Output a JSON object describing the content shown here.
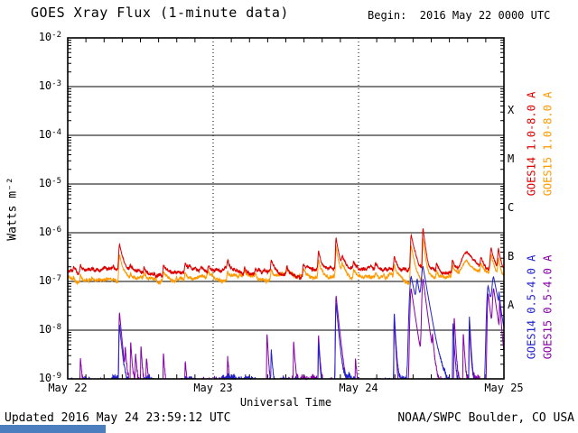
{
  "footer": {
    "updated": "Updated 2016 May 24 23:59:12 UTC",
    "source": "NOAA/SWPC Boulder, CO USA"
  },
  "status_fragment": {
    "color": "#4a7ebf"
  },
  "chart_data": {
    "type": "line",
    "title": "GOES Xray Flux (1-minute data)",
    "begin": "Begin:  2016 May 22 0000 UTC",
    "xlabel": "Universal Time",
    "ylabel": "Watts m⁻²",
    "x_range_hours": [
      0,
      72
    ],
    "x_minor_tick_hours": 3,
    "x_day_ticks": [
      {
        "t": 0,
        "label": "May 22"
      },
      {
        "t": 24,
        "label": "May 23"
      },
      {
        "t": 48,
        "label": "May 24"
      },
      {
        "t": 72,
        "label": "May 25"
      }
    ],
    "y_exponents": [
      -2,
      -3,
      -4,
      -5,
      -6,
      -7,
      -8,
      -9
    ],
    "clip_min": 1e-09,
    "clip_max": 0.01,
    "grid": {
      "horizontal": "solid",
      "vertical": "dotted"
    },
    "flare_classes": [
      {
        "letter": "X",
        "center_exponent": -3.5
      },
      {
        "letter": "M",
        "center_exponent": -4.5
      },
      {
        "letter": "C",
        "center_exponent": -5.5
      },
      {
        "letter": "B",
        "center_exponent": -6.5
      },
      {
        "letter": "A",
        "center_exponent": -7.5
      }
    ],
    "legend": [
      {
        "label": "GOES14 1.0-8.0 A",
        "color": "#dd0000"
      },
      {
        "label": "GOES15 1.0-8.0 A",
        "color": "#ff9900"
      },
      {
        "label": "GOES14 0.5-4.0 A",
        "color": "#2222cc"
      },
      {
        "label": "GOES15 0.5-4.0 A",
        "color": "#8800aa"
      }
    ],
    "series": [
      {
        "name": "GOES15 1.0-8.0 A",
        "color": "#ff9900",
        "baseline": 1.15e-07,
        "noise": 0.06,
        "wander": 0.03,
        "rise": 0.12,
        "decay": 0.45,
        "flares": [
          {
            "t": 1.0,
            "peak": 3e-08
          },
          {
            "t": 2.1,
            "peak": 4.5e-08
          },
          {
            "t": 4.0,
            "peak": 2e-08
          },
          {
            "t": 8.55,
            "peak": 2.6e-07,
            "rise": 0.15,
            "decay": 0.5
          },
          {
            "t": 10.4,
            "peak": 3e-08
          },
          {
            "t": 12.6,
            "peak": 4e-08
          },
          {
            "t": 15.8,
            "peak": 5.5e-08
          },
          {
            "t": 19.4,
            "peak": 4e-08
          },
          {
            "t": 23.2,
            "peak": 3e-08
          },
          {
            "t": 26.4,
            "peak": 5e-08
          },
          {
            "t": 29.2,
            "peak": 3e-08
          },
          {
            "t": 31.0,
            "peak": 2.5e-08
          },
          {
            "t": 33.6,
            "peak": 7e-08
          },
          {
            "t": 36.2,
            "peak": 4e-08
          },
          {
            "t": 38.9,
            "peak": 5.5e-08
          },
          {
            "t": 41.4,
            "peak": 1.5e-07
          },
          {
            "t": 44.3,
            "peak": 3.9e-07,
            "rise": 0.12,
            "decay": 0.4
          },
          {
            "t": 45.3,
            "peak": 7e-08
          },
          {
            "t": 47.2,
            "peak": 4.5e-08
          },
          {
            "t": 50.8,
            "peak": 4e-08
          },
          {
            "t": 53.9,
            "peak": 9.5e-08
          },
          {
            "t": 56.7,
            "peak": 4.5e-07,
            "rise": 0.15,
            "decay": 0.5
          },
          {
            "t": 58.65,
            "peak": 6.6e-07,
            "rise": 0.12,
            "decay": 0.35
          },
          {
            "t": 60.9,
            "peak": 5e-08
          },
          {
            "t": 63.5,
            "peak": 9e-08
          },
          {
            "t": 65.9,
            "peak": 1.6e-07,
            "rise": 1.0,
            "decay": 1.6
          },
          {
            "t": 68.2,
            "peak": 7.5e-08
          },
          {
            "t": 69.9,
            "peak": 2.1e-07,
            "rise": 0.2,
            "decay": 0.5
          },
          {
            "t": 71.1,
            "peak": 1.7e-07,
            "rise": 0.15,
            "decay": 0.4
          }
        ]
      },
      {
        "name": "GOES14 1.0-8.0 A",
        "color": "#dd0000",
        "baseline": 1.6e-07,
        "noise": 0.06,
        "wander": 0.03,
        "rise": 0.12,
        "decay": 0.45,
        "flares": [
          {
            "t": 1.0,
            "peak": 5e-08
          },
          {
            "t": 2.1,
            "peak": 7e-08
          },
          {
            "t": 4.0,
            "peak": 3e-08
          },
          {
            "t": 8.55,
            "peak": 4.2e-07,
            "rise": 0.15,
            "decay": 0.5
          },
          {
            "t": 10.4,
            "peak": 5e-08
          },
          {
            "t": 12.6,
            "peak": 6e-08
          },
          {
            "t": 15.8,
            "peak": 9e-08
          },
          {
            "t": 19.4,
            "peak": 6e-08
          },
          {
            "t": 23.2,
            "peak": 5e-08
          },
          {
            "t": 26.4,
            "peak": 8e-08
          },
          {
            "t": 29.2,
            "peak": 5e-08
          },
          {
            "t": 31.0,
            "peak": 4e-08
          },
          {
            "t": 33.6,
            "peak": 1.1e-07
          },
          {
            "t": 36.2,
            "peak": 6e-08
          },
          {
            "t": 38.9,
            "peak": 9e-08
          },
          {
            "t": 41.4,
            "peak": 2.4e-07
          },
          {
            "t": 44.3,
            "peak": 6.2e-07,
            "rise": 0.12,
            "decay": 0.4
          },
          {
            "t": 45.3,
            "peak": 1.1e-07
          },
          {
            "t": 47.2,
            "peak": 7e-08
          },
          {
            "t": 50.8,
            "peak": 6e-08
          },
          {
            "t": 53.9,
            "peak": 1.5e-07
          },
          {
            "t": 56.7,
            "peak": 7.2e-07,
            "rise": 0.15,
            "decay": 0.5
          },
          {
            "t": 58.65,
            "peak": 1.05e-06,
            "rise": 0.12,
            "decay": 0.35
          },
          {
            "t": 60.9,
            "peak": 8e-08
          },
          {
            "t": 63.5,
            "peak": 1.5e-07
          },
          {
            "t": 65.9,
            "peak": 2.6e-07,
            "rise": 1.0,
            "decay": 1.6
          },
          {
            "t": 68.2,
            "peak": 1.2e-07
          },
          {
            "t": 69.9,
            "peak": 3.4e-07,
            "rise": 0.2,
            "decay": 0.5
          },
          {
            "t": 71.1,
            "peak": 2.8e-07,
            "rise": 0.15,
            "decay": 0.4
          }
        ]
      },
      {
        "name": "GOES15 0.5-4.0 A",
        "color": "#8800aa",
        "baseline": 7.5e-10,
        "noise": 0.2,
        "wander": 0.05,
        "rise": 0.06,
        "decay": 0.18,
        "flares": [
          {
            "t": 2.1,
            "peak": 2e-09
          },
          {
            "t": 8.55,
            "peak": 2.2e-08,
            "rise": 0.1,
            "decay": 0.3
          },
          {
            "t": 9.5,
            "peak": 3e-09
          },
          {
            "t": 10.4,
            "peak": 5e-09
          },
          {
            "t": 11.2,
            "peak": 2.5e-09
          },
          {
            "t": 12.1,
            "peak": 4e-09
          },
          {
            "t": 13.0,
            "peak": 2e-09
          },
          {
            "t": 15.8,
            "peak": 3e-09
          },
          {
            "t": 19.4,
            "peak": 1.8e-09
          },
          {
            "t": 26.4,
            "peak": 2e-09
          },
          {
            "t": 32.9,
            "peak": 8e-09
          },
          {
            "t": 37.3,
            "peak": 5e-09
          },
          {
            "t": 41.4,
            "peak": 7e-09
          },
          {
            "t": 44.3,
            "peak": 5e-08,
            "rise": 0.1,
            "decay": 0.35
          },
          {
            "t": 47.5,
            "peak": 2e-09
          },
          {
            "t": 53.9,
            "peak": 1.6e-08
          },
          {
            "t": 56.7,
            "peak": 7e-08,
            "rise": 0.2,
            "decay": 0.5
          },
          {
            "t": 58.65,
            "peak": 1.1e-07,
            "rise": 0.2,
            "decay": 0.45
          },
          {
            "t": 60.2,
            "peak": 4e-09
          },
          {
            "t": 63.8,
            "peak": 1.8e-08
          },
          {
            "t": 65.3,
            "peak": 8e-09
          },
          {
            "t": 66.3,
            "peak": 1.1e-08
          },
          {
            "t": 69.4,
            "peak": 5.5e-08,
            "rise": 0.15,
            "decay": 0.4
          },
          {
            "t": 70.3,
            "peak": 6.5e-08,
            "rise": 0.2,
            "decay": 0.5
          },
          {
            "t": 71.3,
            "peak": 3.5e-08
          }
        ]
      },
      {
        "name": "GOES14 0.5-4.0 A",
        "color": "#2222cc",
        "baseline": 8.5e-10,
        "noise": 0.15,
        "wander": 0.04,
        "rise": 0.06,
        "decay": 0.18,
        "flares": [
          {
            "t": 8.55,
            "peak": 1.2e-08,
            "rise": 0.1,
            "decay": 0.3
          },
          {
            "t": 33.6,
            "peak": 3e-09
          },
          {
            "t": 41.4,
            "peak": 5e-09
          },
          {
            "t": 44.3,
            "peak": 3.5e-08,
            "rise": 0.1,
            "decay": 0.3
          },
          {
            "t": 53.9,
            "peak": 2.2e-08
          },
          {
            "t": 56.7,
            "peak": 1.25e-07,
            "rise": 0.3,
            "decay": 0.7
          },
          {
            "t": 57.7,
            "peak": 8e-08,
            "rise": 0.2,
            "decay": 0.5
          },
          {
            "t": 58.65,
            "peak": 1.8e-07,
            "rise": 0.3,
            "decay": 0.6
          },
          {
            "t": 63.6,
            "peak": 1.3e-08
          },
          {
            "t": 66.3,
            "peak": 1.8e-08
          },
          {
            "t": 69.4,
            "peak": 8e-08,
            "rise": 0.25,
            "decay": 0.6
          },
          {
            "t": 70.3,
            "peak": 1.05e-07,
            "rise": 0.3,
            "decay": 0.7
          },
          {
            "t": 71.2,
            "peak": 2.8e-08
          }
        ]
      }
    ]
  }
}
